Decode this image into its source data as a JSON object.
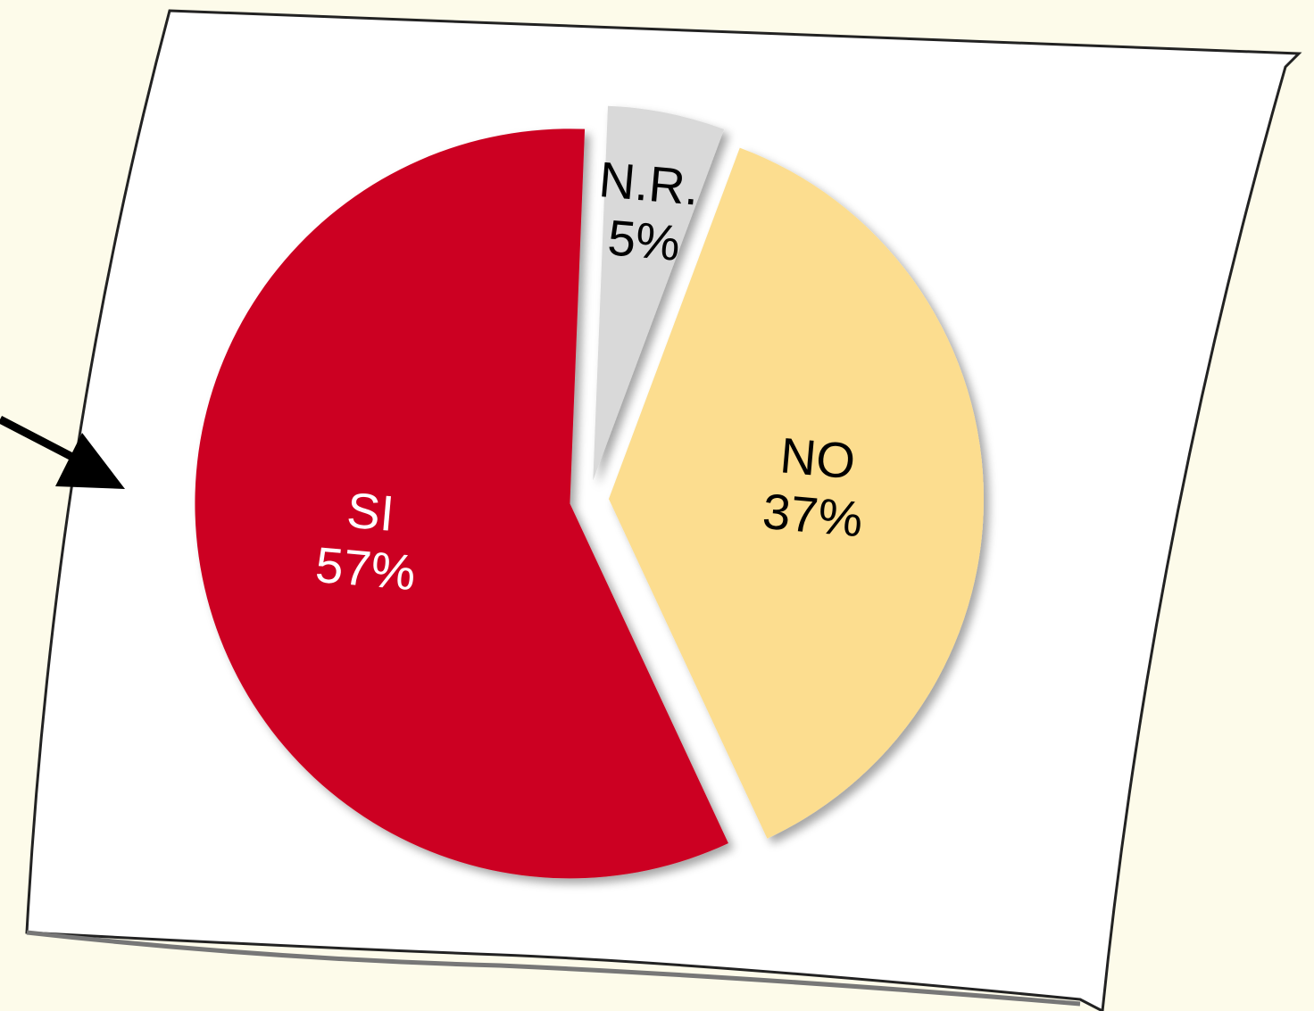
{
  "chart_data": {
    "type": "pie",
    "categories": [
      "SI",
      "N.R.",
      "NO"
    ],
    "values": [
      57,
      5,
      37
    ],
    "value_labels": [
      "57%",
      "5%",
      "37%"
    ],
    "colors": [
      "#cc0020",
      "#d9d9d9",
      "#fcdd8f"
    ],
    "label_colors": [
      "#ffffff",
      "#000000",
      "#000000"
    ]
  }
}
